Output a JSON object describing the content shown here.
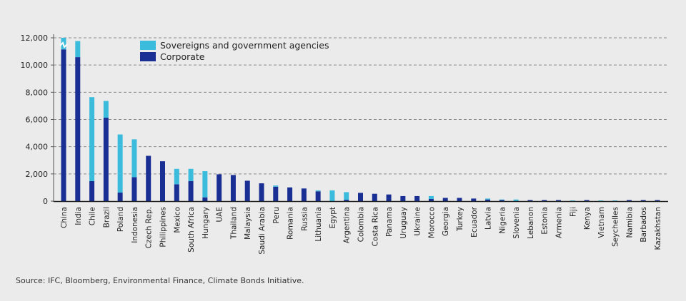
{
  "chart_data": {
    "type": "bar",
    "stacked": true,
    "title": "",
    "xlabel": "",
    "ylabel": "",
    "ylim": [
      0,
      12000
    ],
    "yticks": [
      0,
      2000,
      4000,
      6000,
      8000,
      10000,
      12000
    ],
    "ytick_labels": [
      "0",
      "2,000",
      "4,000",
      "6,000",
      "8,000",
      "10,000",
      "12,000"
    ],
    "grid": "horizontal dashed",
    "legend_placement": "top-center",
    "axis_break_on_first_bar": true,
    "categories": [
      "China",
      "India",
      "Chile",
      "Brazil",
      "Poland",
      "Indonesia",
      "Czech Rep.",
      "Philippines",
      "Mexico",
      "South Africa",
      "Hungary",
      "UAE",
      "Thailand",
      "Malaysia",
      "Saudi Arabia",
      "Peru",
      "Romania",
      "Russia",
      "Lithuania",
      "Egypt",
      "Argentina",
      "Colombia",
      "Costa Rica",
      "Panama",
      "Uruguay",
      "Ukraine",
      "Morocco",
      "Georgia",
      "Turkey",
      "Ecuador",
      "Latvia",
      "Nigeria",
      "Slovenia",
      "Lebanon",
      "Estonia",
      "Armenia",
      "Fiji",
      "Kenya",
      "Vietnam",
      "Seychelles",
      "Namibia",
      "Barbados",
      "Kazakhstan"
    ],
    "series": [
      {
        "name": "Corporate",
        "color": "#1a2f94",
        "values": [
          11150,
          10580,
          1470,
          6130,
          630,
          1760,
          3330,
          2930,
          1240,
          1470,
          280,
          1970,
          1920,
          1500,
          1310,
          1060,
          1010,
          930,
          720,
          0,
          100,
          610,
          540,
          490,
          370,
          370,
          160,
          240,
          240,
          190,
          120,
          80,
          0,
          80,
          80,
          80,
          0,
          80,
          0,
          0,
          80,
          80,
          80
        ]
      },
      {
        "name": "Sovereigns and government agencies",
        "color": "#3bbcdc",
        "values": [
          850,
          1180,
          6170,
          1230,
          4270,
          2780,
          0,
          0,
          1130,
          900,
          1920,
          0,
          0,
          0,
          0,
          90,
          0,
          0,
          70,
          790,
          560,
          0,
          0,
          0,
          0,
          0,
          210,
          0,
          0,
          0,
          70,
          40,
          120,
          0,
          0,
          0,
          50,
          0,
          50,
          50,
          0,
          0,
          0
        ]
      }
    ],
    "legend": [
      "Sovereigns and government agencies",
      "Corporate"
    ]
  },
  "source": "Source: IFC, Bloomberg, Environmental Finance, Climate Bonds Initiative."
}
